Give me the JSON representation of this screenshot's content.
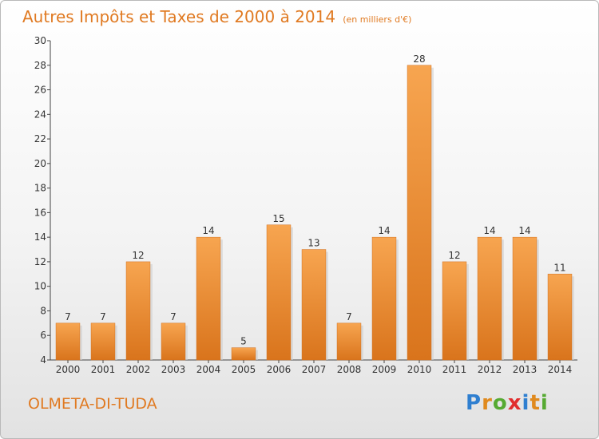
{
  "chart_data": {
    "type": "bar",
    "title": "Autres Impôts et Taxes de 2000 à 2014",
    "subtitle": "(en milliers d'€)",
    "categories": [
      "2000",
      "2001",
      "2002",
      "2003",
      "2004",
      "2005",
      "2006",
      "2007",
      "2008",
      "2009",
      "2010",
      "2011",
      "2012",
      "2013",
      "2014"
    ],
    "values": [
      7,
      7,
      12,
      7,
      14,
      5,
      15,
      13,
      7,
      14,
      28,
      12,
      14,
      14,
      11
    ],
    "ylim": [
      4,
      30
    ],
    "yticks": [
      4,
      6,
      8,
      10,
      12,
      14,
      16,
      18,
      20,
      22,
      24,
      26,
      28,
      30
    ],
    "grid": false,
    "legend": "none",
    "bar_color": "#f29a3c"
  },
  "footer": {
    "commune": "OLMETA-DI-TUDA",
    "logo": {
      "p": "P",
      "r": "r",
      "o": "o",
      "x": "x",
      "i": "i",
      "t": "t",
      "i2": "i"
    }
  }
}
